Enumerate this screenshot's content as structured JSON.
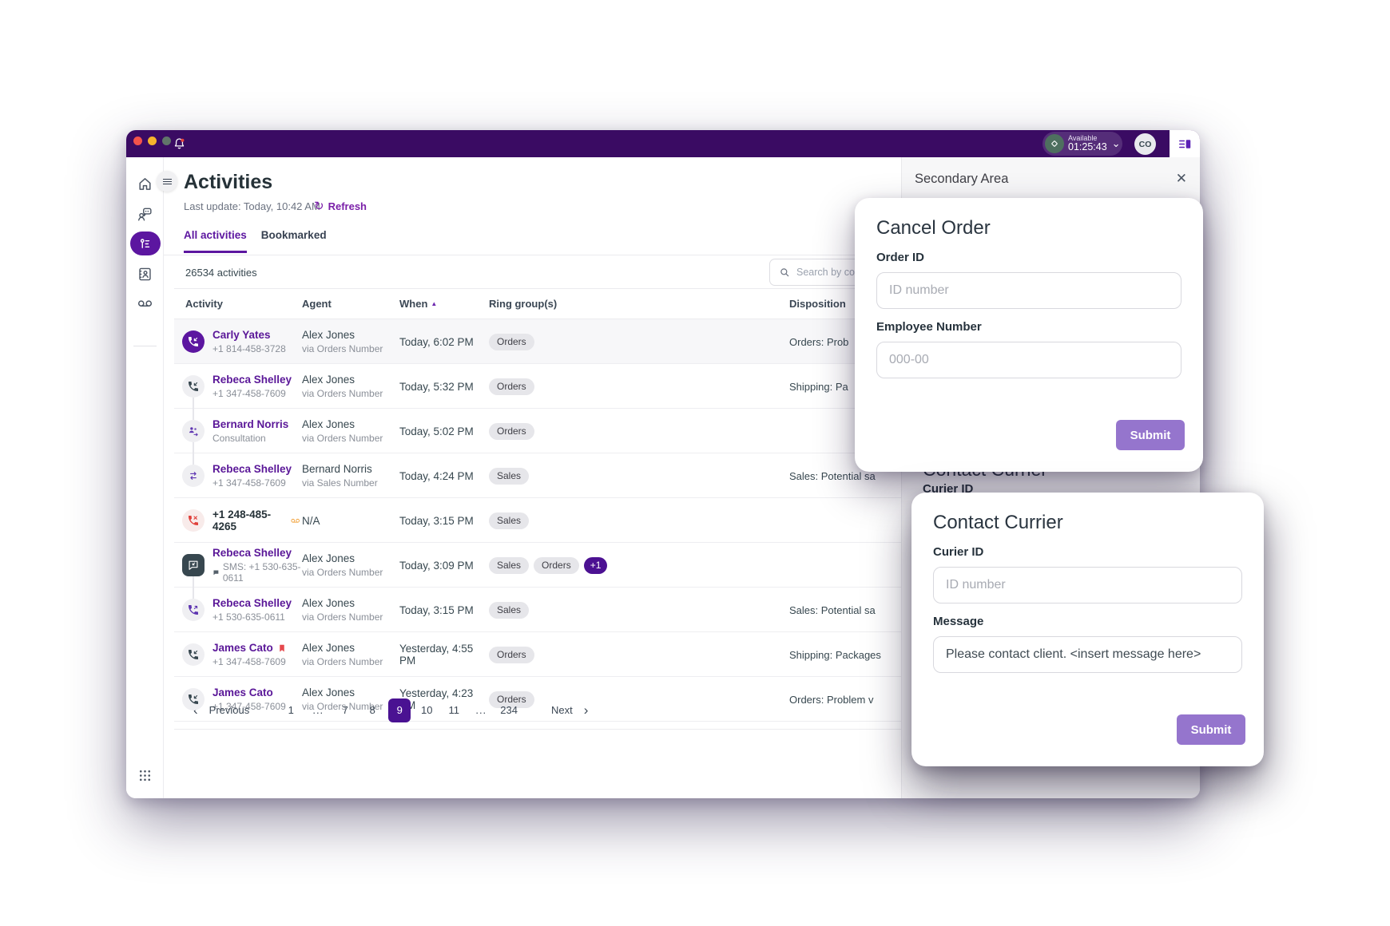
{
  "titlebar": {
    "status_label": "Available",
    "status_timer": "01:25:43",
    "avatar": "CO"
  },
  "icons": {
    "close": "✕",
    "chevron_down": "⌄",
    "chevron_left": "‹",
    "chevron_right": "›",
    "refresh": "↻",
    "sort_asc": "▲"
  },
  "sidebar": {
    "items": [
      {
        "name": "home",
        "active": false
      },
      {
        "name": "agent-chat",
        "active": false
      },
      {
        "name": "activities",
        "active": true
      },
      {
        "name": "contacts",
        "active": false
      },
      {
        "name": "voicemail",
        "active": false
      }
    ]
  },
  "page": {
    "title": "Activities",
    "last_update": "Last update: Today, 10:42 AM",
    "refresh_label": "Refresh",
    "tabs": [
      {
        "label": "All activities",
        "active": true
      },
      {
        "label": "Bookmarked",
        "active": false
      }
    ],
    "activities_count": "26534 activities",
    "search_placeholder": "Search by co"
  },
  "table": {
    "columns": {
      "activity": "Activity",
      "agent": "Agent",
      "when": "When",
      "ring": "Ring group(s)",
      "disposition": "Disposition"
    },
    "sorted_column": "When",
    "rows": [
      {
        "name": "Carly Yates",
        "name_style": "link",
        "bookmark": false,
        "voicemail": false,
        "sub": "+1 814-458-3728",
        "sub_sms": false,
        "icon": "call-inbound",
        "icon_style": "purple-filled",
        "agent": "Alex Jones",
        "agent_sub": "via Orders Number",
        "when": "Today, 6:02 PM",
        "tags": [
          "Orders"
        ],
        "disposition": "Orders: Prob",
        "highlighted": true,
        "connect": ""
      },
      {
        "name": "Rebeca Shelley",
        "name_style": "link",
        "bookmark": false,
        "voicemail": false,
        "sub": "+1 347-458-7609",
        "sub_sms": false,
        "icon": "call-inbound",
        "icon_style": "light-dark",
        "agent": "Alex Jones",
        "agent_sub": "via Orders Number",
        "when": "Today, 5:32 PM",
        "tags": [
          "Orders"
        ],
        "disposition": "Shipping: Pa",
        "highlighted": false,
        "connect": "below"
      },
      {
        "name": "Bernard Norris",
        "name_style": "link",
        "bookmark": false,
        "voicemail": false,
        "sub": "Consultation",
        "sub_sms": false,
        "icon": "consultation",
        "icon_style": "light-purple",
        "agent": "Alex Jones",
        "agent_sub": "via Orders Number",
        "when": "Today, 5:02 PM",
        "tags": [
          "Orders"
        ],
        "disposition": "",
        "highlighted": false,
        "connect": "above below"
      },
      {
        "name": "Rebeca Shelley",
        "name_style": "link",
        "bookmark": false,
        "voicemail": false,
        "sub": "+1 347-458-7609",
        "sub_sms": false,
        "icon": "transfer",
        "icon_style": "light-purple",
        "agent": "Bernard Norris",
        "agent_sub": "via Sales Number",
        "when": "Today, 4:24 PM",
        "tags": [
          "Sales"
        ],
        "disposition": "Sales: Potential sa",
        "highlighted": false,
        "connect": "above"
      },
      {
        "name": "+1 248-485-4265",
        "name_style": "dark",
        "bookmark": false,
        "voicemail": true,
        "sub": "",
        "sub_sms": false,
        "icon": "call-missed",
        "icon_style": "light-red",
        "agent": "N/A",
        "agent_sub": "",
        "when": "Today, 3:15 PM",
        "tags": [
          "Sales"
        ],
        "disposition": "",
        "highlighted": false,
        "connect": ""
      },
      {
        "name": "Rebeca Shelley",
        "name_style": "link",
        "bookmark": false,
        "voicemail": false,
        "sub": "SMS: +1 530-635-0611",
        "sub_sms": true,
        "icon": "sms",
        "icon_style": "dark-square",
        "agent": "Alex Jones",
        "agent_sub": "via Orders Number",
        "when": "Today, 3:09 PM",
        "tags": [
          "Sales",
          "Orders",
          "+1"
        ],
        "disposition": "",
        "highlighted": false,
        "connect": "below"
      },
      {
        "name": "Rebeca Shelley",
        "name_style": "link",
        "bookmark": false,
        "voicemail": false,
        "sub": "+1 530-635-0611",
        "sub_sms": false,
        "icon": "call-outbound",
        "icon_style": "light-purple",
        "agent": "Alex Jones",
        "agent_sub": "via Orders Number",
        "when": "Today, 3:15 PM",
        "tags": [
          "Sales"
        ],
        "disposition": "Sales: Potential sa",
        "highlighted": false,
        "connect": "above"
      },
      {
        "name": "James Cato",
        "name_style": "link",
        "bookmark": true,
        "voicemail": false,
        "sub": "+1 347-458-7609",
        "sub_sms": false,
        "icon": "call-inbound",
        "icon_style": "light-dark",
        "agent": "Alex Jones",
        "agent_sub": "via Orders Number",
        "when": "Yesterday, 4:55 PM",
        "tags": [
          "Orders"
        ],
        "disposition": "Shipping: Packages",
        "highlighted": false,
        "connect": ""
      },
      {
        "name": "James Cato",
        "name_style": "link",
        "bookmark": false,
        "voicemail": false,
        "sub": "+1 347-458-7609",
        "sub_sms": false,
        "icon": "call-inbound",
        "icon_style": "light-dark",
        "agent": "Alex Jones",
        "agent_sub": "via Orders Number",
        "when": "Yesterday, 4:23 PM",
        "tags": [
          "Orders"
        ],
        "disposition": "Orders: Problem v",
        "highlighted": false,
        "connect": ""
      }
    ]
  },
  "pagination": {
    "prev": "Previous",
    "next": "Next",
    "pages": [
      "1",
      "...",
      "7",
      "8",
      "9",
      "10",
      "11",
      "...",
      "234"
    ],
    "active": "9"
  },
  "secondary": {
    "title": "Secondary Area",
    "bg_heading": "Contact Currier",
    "bg_label": "Curier ID"
  },
  "modals": {
    "cancel_order": {
      "title": "Cancel Order",
      "fields": [
        {
          "label": "Order ID",
          "placeholder": "ID number",
          "value": ""
        },
        {
          "label": "Employee Number",
          "placeholder": "000-00",
          "value": ""
        }
      ],
      "submit": "Submit"
    },
    "contact_currier": {
      "title": "Contact Currier",
      "fields": [
        {
          "label": "Curier ID",
          "placeholder": "ID number",
          "value": ""
        },
        {
          "label": "Message",
          "placeholder": "",
          "value": "Please contact client. <insert message here>"
        }
      ],
      "submit": "Submit"
    }
  },
  "colors": {
    "titlebar": "#3A0B63",
    "brand_purple": "#5C16A0",
    "active_page": "#4A1292",
    "plus_badge": "#4C1192",
    "submit_button": "#9575CD",
    "status_green": "#4E6F5F",
    "tag_bg": "#E6E6EA",
    "panel_bg": "#F7F7F8"
  }
}
